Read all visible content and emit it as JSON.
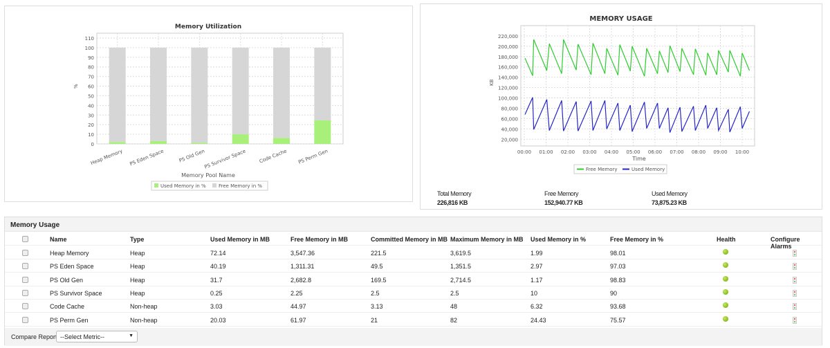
{
  "utilization_chart": {
    "chart_data": {
      "type": "bar",
      "stacked": true,
      "title": "Memory Utilization",
      "xlabel": "Memory Pool Name",
      "ylabel": "%",
      "ylim": [
        0,
        115
      ],
      "yticks": [
        0,
        10,
        20,
        30,
        40,
        50,
        60,
        70,
        80,
        90,
        100,
        110
      ],
      "grid": true,
      "legend": "bottom",
      "categories": [
        "Heap Memory",
        "PS Eden Space",
        "PS Old Gen",
        "PS Survivor Space",
        "Code Cache",
        "PS Perm Gen"
      ],
      "series": [
        {
          "name": "Used Memory in %",
          "color": "#a8f07a",
          "values": [
            1.99,
            2.97,
            1.17,
            10,
            6.32,
            24.43
          ]
        },
        {
          "name": "Free Memory in %",
          "color": "#d6d6d6",
          "values": [
            98.01,
            97.03,
            98.83,
            90,
            93.68,
            75.57
          ]
        }
      ]
    }
  },
  "usage_chart": {
    "chart_data": {
      "type": "line",
      "title": "MEMORY USAGE",
      "xlabel": "Time",
      "ylabel": "KB",
      "ylim": [
        7000,
        240000
      ],
      "yticks": [
        "20,000",
        "40,000",
        "60,000",
        "80,000",
        "100,000",
        "120,000",
        "140,000",
        "160,000",
        "180,000",
        "200,000",
        "220,000"
      ],
      "xticks": [
        "00:00",
        "01:00",
        "02:00",
        "03:00",
        "04:00",
        "05:00",
        "06:00",
        "07:00",
        "08:00",
        "09:00",
        "10:00"
      ],
      "grid": true,
      "legend": "bottom",
      "x": [
        "00:02",
        "00:23",
        "00:26",
        "01:02",
        "01:09",
        "01:43",
        "01:48",
        "02:23",
        "02:28",
        "03:04",
        "03:09",
        "03:42",
        "03:47",
        "04:18",
        "04:23",
        "04:52",
        "04:57",
        "05:31",
        "05:37",
        "06:07",
        "06:12",
        "06:36",
        "06:41",
        "07:09",
        "07:14",
        "07:46",
        "07:51",
        "08:20",
        "08:25",
        "08:50",
        "08:55",
        "09:22",
        "09:26",
        "09:55",
        "10:00",
        "10:20"
      ],
      "series": [
        {
          "name": "Free Memory",
          "color": "#2ecc2e",
          "values": [
            177000,
            143000,
            213000,
            153000,
            205000,
            147000,
            213000,
            154000,
            204000,
            145000,
            206000,
            147000,
            196000,
            144000,
            203000,
            152000,
            200000,
            142000,
            196000,
            147000,
            191000,
            149000,
            201000,
            151000,
            196000,
            145000,
            195000,
            144000,
            187000,
            145000,
            192000,
            150000,
            192000,
            142000,
            187000,
            153000
          ]
        },
        {
          "name": "Used Memory",
          "color": "#2626c8",
          "values": [
            68000,
            101000,
            39000,
            97000,
            37000,
            95000,
            36000,
            93000,
            36000,
            94000,
            37000,
            95000,
            40000,
            90000,
            37000,
            86000,
            35000,
            92000,
            41000,
            90000,
            41000,
            81000,
            33000,
            82000,
            35000,
            84000,
            37000,
            86000,
            41000,
            81000,
            37000,
            78000,
            34000,
            83000,
            41000,
            74000
          ]
        }
      ]
    },
    "stats": [
      {
        "label": "Total Memory",
        "value": "226,816 KB"
      },
      {
        "label": "Free Memory",
        "value": "152,940.77 KB"
      },
      {
        "label": "Used Memory",
        "value": "73,875.23 KB"
      }
    ]
  },
  "table": {
    "title": "Memory Usage",
    "columns": [
      "Name",
      "Type",
      "Used Memory in MB",
      "Free Memory in MB",
      "Committed Memory in MB",
      "Maximum Memory in MB",
      "Used Memory in %",
      "Free Memory in %",
      "Health",
      "Configure Alarms"
    ],
    "rows": [
      [
        "Heap Memory",
        "Heap",
        "72.14",
        "3,547.36",
        "221.5",
        "3,619.5",
        "1.99",
        "98.01"
      ],
      [
        "PS Eden Space",
        "Heap",
        "40.19",
        "1,311.31",
        "49.5",
        "1,351.5",
        "2.97",
        "97.03"
      ],
      [
        "PS Old Gen",
        "Heap",
        "31.7",
        "2,682.8",
        "169.5",
        "2,714.5",
        "1.17",
        "98.83"
      ],
      [
        "PS Survivor Space",
        "Heap",
        "0.25",
        "2.25",
        "2.5",
        "2.5",
        "10",
        "90"
      ],
      [
        "Code Cache",
        "Non-heap",
        "3.03",
        "44.97",
        "3.13",
        "48",
        "6.32",
        "93.68"
      ],
      [
        "PS Perm Gen",
        "Non-heap",
        "20.03",
        "61.97",
        "21",
        "82",
        "24.43",
        "75.57"
      ]
    ],
    "health_color": "#7ab800",
    "footer": {
      "compare_label": "Compare Reports",
      "select_value": "--Select Metric--"
    }
  }
}
